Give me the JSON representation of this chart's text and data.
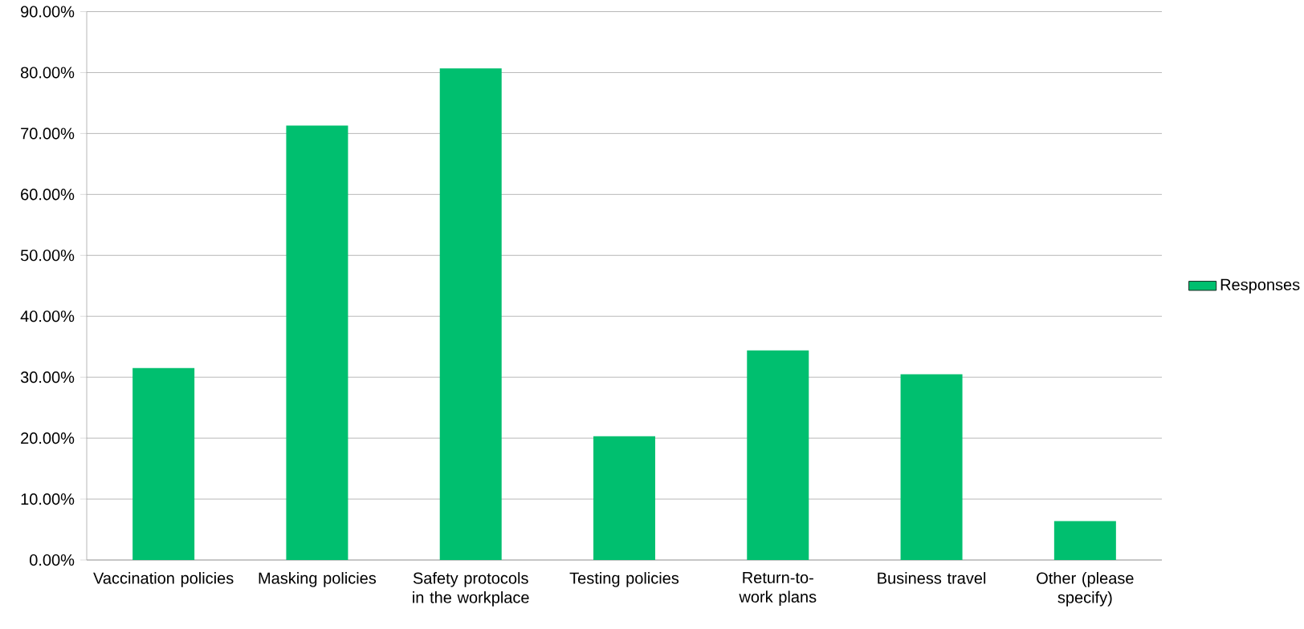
{
  "chart_data": {
    "type": "bar",
    "categories": [
      "Vaccination policies",
      "Masking policies",
      "Safety protocols in the workplace",
      "Testing policies",
      "Return-to-work plans",
      "Business travel",
      "Other (please specify)"
    ],
    "series": [
      {
        "name": "Responses",
        "color": "#00bf6f",
        "values": [
          31.5,
          71.3,
          80.7,
          20.3,
          34.4,
          30.5,
          6.4
        ]
      }
    ],
    "ylim": [
      0,
      90
    ],
    "yticks": [
      {
        "value": 0,
        "label": "0.00%"
      },
      {
        "value": 10,
        "label": "10.00%"
      },
      {
        "value": 20,
        "label": "20.00%"
      },
      {
        "value": 30,
        "label": "30.00%"
      },
      {
        "value": 40,
        "label": "40.00%"
      },
      {
        "value": 50,
        "label": "50.00%"
      },
      {
        "value": 60,
        "label": "60.00%"
      },
      {
        "value": 70,
        "label": "70.00%"
      },
      {
        "value": 80,
        "label": "80.00%"
      },
      {
        "value": 90,
        "label": "90.00%"
      }
    ],
    "grid": "y",
    "legend": "right"
  }
}
